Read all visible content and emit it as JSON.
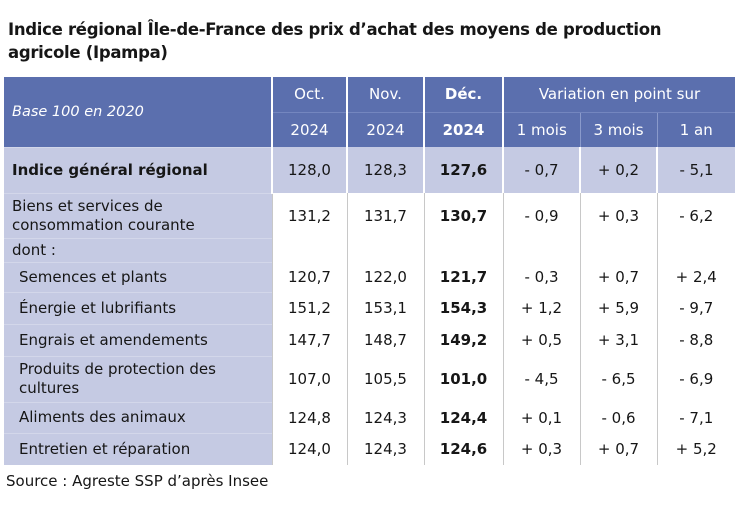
{
  "title": "Indice régional Île-de-France des prix d’achat des moyens de production agricole (Ipampa)",
  "table": {
    "base_label": "Base 100 en 2020",
    "months": [
      "Oct.",
      "Nov.",
      "Déc."
    ],
    "years": [
      "2024",
      "2024",
      "2024"
    ],
    "variation_label": "Variation en point sur",
    "variation_cols": [
      "1 mois",
      "3 mois",
      "1 an"
    ],
    "dont_label": "dont :",
    "rows": [
      {
        "label": "Indice général régional",
        "values": [
          "128,0",
          "128,3",
          "127,6",
          "- 0,7",
          "+ 0,2",
          "- 5,1"
        ]
      },
      {
        "label": "Biens et services de consommation courante",
        "values": [
          "131,2",
          "131,7",
          "130,7",
          "- 0,9",
          "+ 0,3",
          "- 6,2"
        ]
      },
      {
        "label": "Semences et plants",
        "values": [
          "120,7",
          "122,0",
          "121,7",
          "- 0,3",
          "+ 0,7",
          "+ 2,4"
        ]
      },
      {
        "label": "Énergie et lubrifiants",
        "values": [
          "151,2",
          "153,1",
          "154,3",
          "+ 1,2",
          "+ 5,9",
          "- 9,7"
        ]
      },
      {
        "label": "Engrais et amendements",
        "values": [
          "147,7",
          "148,7",
          "149,2",
          "+ 0,5",
          "+ 3,1",
          "- 8,8"
        ]
      },
      {
        "label": "Produits de protection des cultures",
        "values": [
          "107,0",
          "105,5",
          "101,0",
          "- 4,5",
          "- 6,5",
          "- 6,9"
        ]
      },
      {
        "label": "Aliments des animaux",
        "values": [
          "124,8",
          "124,3",
          "124,4",
          "+ 0,1",
          "- 0,6",
          "- 7,1"
        ]
      },
      {
        "label": "Entretien et réparation",
        "values": [
          "124,0",
          "124,3",
          "124,6",
          "+ 0,3",
          "+ 0,7",
          "+ 5,2"
        ]
      }
    ]
  },
  "source": "Source : Agreste SSP d’après Insee",
  "colors": {
    "header": "#5b6fae",
    "label_column": "#c5cae3"
  }
}
